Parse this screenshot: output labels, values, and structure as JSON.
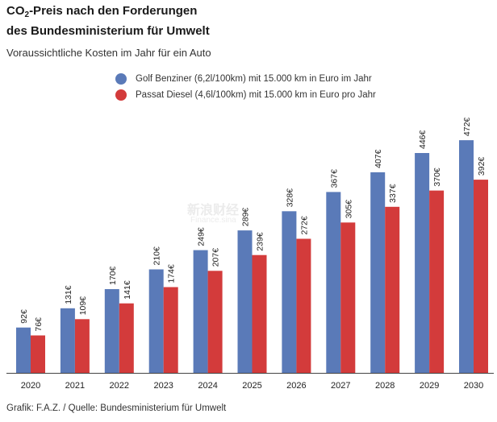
{
  "title": {
    "prefix": "CO",
    "subscript": "2",
    "line1_rest": "-Preis nach den Forderungen",
    "line2": "des  Bundesministerium für Umwelt"
  },
  "subtitle": "Voraussichtliche Kosten im Jahr für ein Auto",
  "footer": "Grafik: F.A.Z. / Quelle: Bundesministerium für Umwelt",
  "watermark": {
    "line1": "新浪财经",
    "line2": "Finance.sina"
  },
  "colors": {
    "benzin": "#5a7ab8",
    "diesel": "#d33b3b",
    "axis": "#444444"
  },
  "chart_data": {
    "type": "bar",
    "title": "CO2-Preis nach den Forderungen des Bundesministerium für Umwelt",
    "subtitle": "Voraussichtliche Kosten im Jahr für ein Auto",
    "categories": [
      "2020",
      "2021",
      "2022",
      "2023",
      "2024",
      "2025",
      "2026",
      "2027",
      "2028",
      "2029",
      "2030"
    ],
    "series": [
      {
        "name": "Golf Benziner (6,2l/100km) mit 15.000 km in Euro im Jahr",
        "values": [
          92,
          131,
          170,
          210,
          249,
          289,
          328,
          367,
          407,
          446,
          472
        ],
        "labels": [
          "92€",
          "131€",
          "170€",
          "210€",
          "249€",
          "289€",
          "328€",
          "367€",
          "407€",
          "446€",
          "472€"
        ]
      },
      {
        "name": "Passat Diesel (4,6l/100km) mit 15.000 km in Euro pro Jahr",
        "values": [
          76,
          109,
          141,
          174,
          207,
          239,
          272,
          305,
          337,
          370,
          392
        ],
        "labels": [
          "76€",
          "109€",
          "141€",
          "174€",
          "207€",
          "239€",
          "272€",
          "305€",
          "337€",
          "370€",
          "392€"
        ]
      }
    ],
    "ylim": [
      0,
      500
    ],
    "xlabel": "",
    "ylabel": "",
    "grid": false,
    "legend": "top-left"
  }
}
